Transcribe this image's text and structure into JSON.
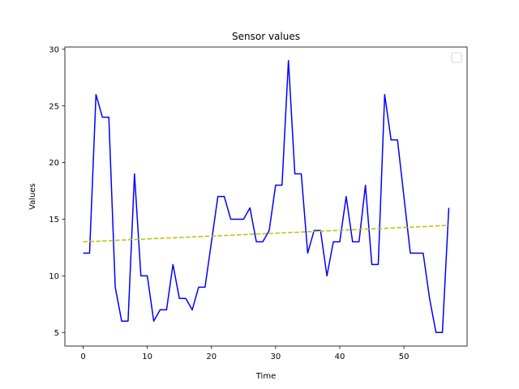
{
  "chart_data": {
    "type": "line",
    "title": "Sensor values",
    "xlabel": "Time",
    "ylabel": "Values",
    "xlim": [
      -2.85,
      59.85
    ],
    "ylim": [
      3.8,
      30.2
    ],
    "xticks": [
      0,
      10,
      20,
      30,
      40,
      50
    ],
    "yticks": [
      5,
      10,
      15,
      20,
      25,
      30
    ],
    "grid": false,
    "legend": {
      "placement": "top-right",
      "entries": []
    },
    "series": [
      {
        "role": "data",
        "style": "solid",
        "color": "#0000ff",
        "x": [
          0,
          1,
          2,
          3,
          4,
          5,
          6,
          7,
          8,
          9,
          10,
          11,
          12,
          13,
          14,
          15,
          16,
          17,
          18,
          19,
          20,
          21,
          22,
          23,
          24,
          25,
          26,
          27,
          28,
          29,
          30,
          31,
          32,
          33,
          34,
          35,
          36,
          37,
          38,
          39,
          40,
          41,
          42,
          43,
          44,
          45,
          46,
          47,
          48,
          49,
          50,
          51,
          52,
          53,
          54,
          55,
          56,
          57
        ],
        "values": [
          12,
          12,
          26,
          24,
          24,
          9,
          6,
          6,
          19,
          10,
          10,
          6,
          7,
          7,
          11,
          8,
          8,
          7,
          9,
          9,
          13,
          17,
          17,
          15,
          15,
          15,
          16,
          13,
          13,
          14,
          18,
          18,
          29,
          19,
          19,
          12,
          14,
          14,
          10,
          13,
          13,
          17,
          13,
          13,
          18,
          11,
          11,
          26,
          22,
          22,
          17,
          12,
          12,
          12,
          8,
          5,
          5,
          16
        ]
      },
      {
        "role": "trend",
        "style": "dashed",
        "color": "#bfbf00",
        "x": [
          0,
          57
        ],
        "values": [
          13.0,
          14.45
        ]
      }
    ]
  }
}
